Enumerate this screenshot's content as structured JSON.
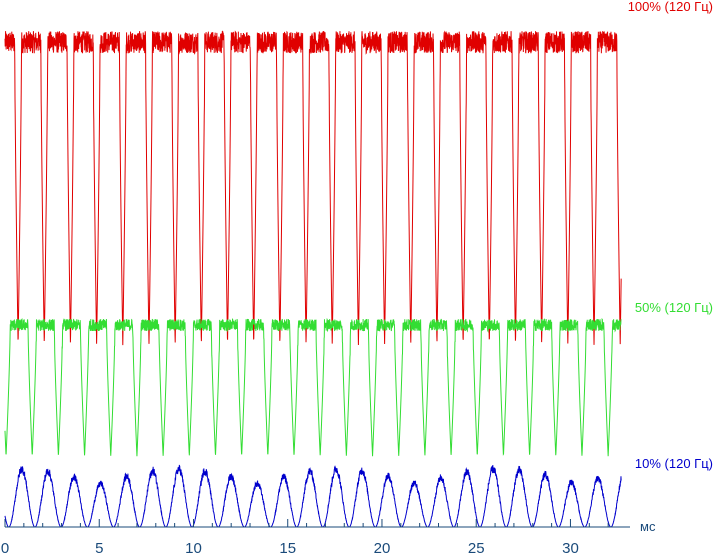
{
  "chart_data": {
    "type": "line",
    "x_unit": "мс",
    "xlim": [
      0,
      33
    ],
    "xticks": [
      0,
      5,
      10,
      15,
      20,
      25,
      30
    ],
    "xtick_labels": [
      "0",
      "5",
      "10",
      "15",
      "20",
      "25",
      "30"
    ],
    "grid": false,
    "period_ms": 1.3889,
    "series": [
      {
        "name": "100% (120 Гц)",
        "color": "#e00000",
        "high_level": 0.96,
        "low_level": 0.36,
        "phase_ms": 0.0
      },
      {
        "name": "50% (120 Гц)",
        "color": "#33dd33",
        "high_level": 0.4,
        "low_level": 0.14,
        "phase_ms": 0.75
      },
      {
        "name": "10% (120 Гц)",
        "color": "#0000cc",
        "high_level": 0.1,
        "low_level": 0.0,
        "phase_ms": 0.2
      }
    ]
  }
}
